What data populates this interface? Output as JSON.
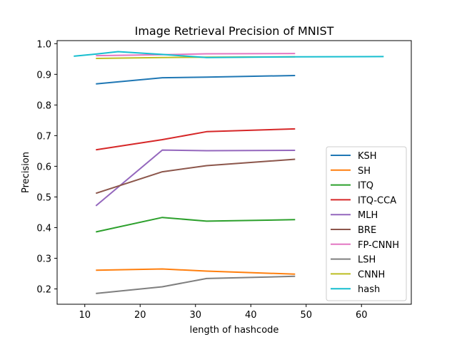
{
  "chart_data": {
    "type": "line",
    "title": "Image Retrieval Precision of MNIST",
    "xlabel": "length of hashcode",
    "ylabel": "Precision",
    "xlim": [
      5,
      69
    ],
    "ylim": [
      0.15,
      1.01
    ],
    "xticks": [
      10,
      20,
      30,
      40,
      50,
      60
    ],
    "yticks": [
      0.2,
      0.3,
      0.4,
      0.5,
      0.6,
      0.7,
      0.8,
      0.9,
      1.0
    ],
    "ytick_labels": [
      "0.2",
      "0.3",
      "0.4",
      "0.5",
      "0.6",
      "0.7",
      "0.8",
      "0.9",
      "1.0"
    ],
    "grid": false,
    "legend_position": "lower-right",
    "series": [
      {
        "name": "KSH",
        "color": "#1f77b4",
        "x": [
          12,
          24,
          32,
          48
        ],
        "y": [
          0.869,
          0.889,
          0.891,
          0.896
        ]
      },
      {
        "name": "SH",
        "color": "#ff7f0e",
        "x": [
          12,
          24,
          32,
          48
        ],
        "y": [
          0.261,
          0.265,
          0.258,
          0.248
        ]
      },
      {
        "name": "ITQ",
        "color": "#2ca02c",
        "x": [
          12,
          24,
          32,
          48
        ],
        "y": [
          0.386,
          0.433,
          0.421,
          0.426
        ]
      },
      {
        "name": "ITQ-CCA",
        "color": "#d62728",
        "x": [
          12,
          24,
          32,
          48
        ],
        "y": [
          0.654,
          0.687,
          0.713,
          0.722
        ]
      },
      {
        "name": "MLH",
        "color": "#9467bd",
        "x": [
          12,
          24,
          32,
          48
        ],
        "y": [
          0.471,
          0.653,
          0.651,
          0.652
        ]
      },
      {
        "name": "BRE",
        "color": "#8c564b",
        "x": [
          12,
          24,
          32,
          48
        ],
        "y": [
          0.512,
          0.582,
          0.602,
          0.623
        ]
      },
      {
        "name": "FP-CNNH",
        "color": "#e377c2",
        "x": [
          12,
          24,
          32,
          48
        ],
        "y": [
          0.961,
          0.964,
          0.967,
          0.968
        ]
      },
      {
        "name": "LSH",
        "color": "#7f7f7f",
        "x": [
          12,
          24,
          32,
          48
        ],
        "y": [
          0.185,
          0.207,
          0.234,
          0.241
        ]
      },
      {
        "name": "CNNH",
        "color": "#bcbd22",
        "x": [
          12,
          24,
          32,
          48
        ],
        "y": [
          0.952,
          0.955,
          0.956,
          0.957
        ]
      },
      {
        "name": "hash",
        "color": "#17becf",
        "x": [
          8,
          12,
          16,
          24,
          32,
          48,
          64
        ],
        "y": [
          0.959,
          0.966,
          0.974,
          0.965,
          0.955,
          0.957,
          0.958
        ]
      }
    ]
  }
}
